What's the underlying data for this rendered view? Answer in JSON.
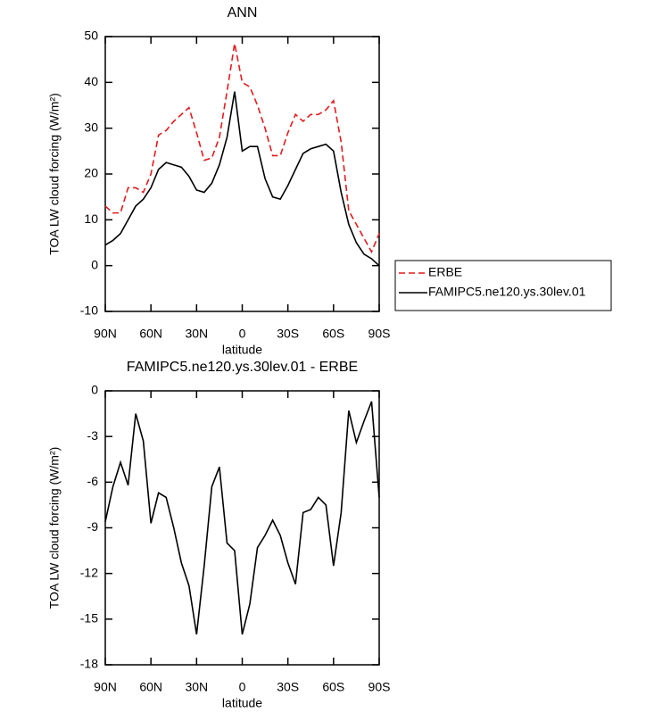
{
  "chart_data": [
    {
      "type": "line",
      "title": "ANN",
      "xlabel": "latitude",
      "ylabel": "TOA LW cloud forcing (W/m²)",
      "x": [
        90,
        85,
        80,
        75,
        70,
        65,
        60,
        55,
        50,
        45,
        40,
        35,
        30,
        25,
        20,
        15,
        10,
        5,
        0,
        -5,
        -10,
        -15,
        -20,
        -25,
        -30,
        -35,
        -40,
        -45,
        -50,
        -55,
        -60,
        -65,
        -70,
        -75,
        -80,
        -85,
        -90
      ],
      "xlim": [
        90,
        -90
      ],
      "xticks": [
        {
          "value": 90,
          "label": "90N"
        },
        {
          "value": 60,
          "label": "60N"
        },
        {
          "value": 30,
          "label": "30N"
        },
        0,
        {
          "value": -30,
          "label": "30S"
        },
        {
          "value": -60,
          "label": "60S"
        },
        {
          "value": -90,
          "label": "90S"
        }
      ],
      "ylim": [
        -10,
        50
      ],
      "yticks": [
        -10,
        0,
        10,
        20,
        30,
        40,
        50
      ],
      "legend": "outside-right",
      "series": [
        {
          "name": "ERBE",
          "color": "#e41a1c",
          "linestyle": "dashed",
          "values": [
            13,
            11.5,
            11.5,
            17,
            17,
            16,
            20,
            28.5,
            29.5,
            31.5,
            33,
            34.5,
            29,
            23,
            23.5,
            28,
            38,
            48.5,
            40,
            39,
            35,
            30,
            24,
            24,
            29,
            33,
            31.5,
            33,
            33,
            34,
            36,
            27,
            12,
            9,
            6,
            3,
            7
          ]
        },
        {
          "name": "FAMIPC5.ne120.ys.30lev.01",
          "color": "#000000",
          "linestyle": "solid",
          "values": [
            4.5,
            5.5,
            7,
            10,
            13,
            14.5,
            17,
            21,
            22.5,
            22,
            21.5,
            19.5,
            16.5,
            16,
            18,
            22,
            28,
            38,
            25,
            26,
            26,
            19,
            15,
            14.5,
            17.5,
            21,
            24.5,
            25.5,
            26,
            26.5,
            25,
            16,
            9,
            5,
            2.5,
            1.5,
            0
          ]
        }
      ]
    },
    {
      "type": "line",
      "title": "FAMIPC5.ne120.ys.30lev.01 - ERBE",
      "xlabel": "latitude",
      "ylabel": "TOA LW cloud forcing (W/m²)",
      "x": [
        90,
        85,
        80,
        75,
        70,
        65,
        60,
        55,
        50,
        45,
        40,
        35,
        30,
        25,
        20,
        15,
        10,
        5,
        0,
        -5,
        -10,
        -15,
        -20,
        -25,
        -30,
        -35,
        -40,
        -45,
        -50,
        -55,
        -60,
        -65,
        -70,
        -75,
        -80,
        -85,
        -90
      ],
      "xlim": [
        90,
        -90
      ],
      "xticks": [
        {
          "value": 90,
          "label": "90N"
        },
        {
          "value": 60,
          "label": "60N"
        },
        {
          "value": 30,
          "label": "30N"
        },
        0,
        {
          "value": -30,
          "label": "30S"
        },
        {
          "value": -60,
          "label": "60S"
        },
        {
          "value": -90,
          "label": "90S"
        }
      ],
      "ylim": [
        -18,
        0
      ],
      "yticks": [
        -18,
        -15,
        -12,
        -9,
        -6,
        -3,
        0
      ],
      "series": [
        {
          "color": "#000000",
          "linestyle": "solid",
          "values": [
            -8.6,
            -6.3,
            -4.7,
            -6.2,
            -1.5,
            -3.3,
            -8.7,
            -6.7,
            -7,
            -9,
            -11.3,
            -12.8,
            -16,
            -11.5,
            -6.3,
            -5,
            -10,
            -10.5,
            -16,
            -14,
            -10.3,
            -9.5,
            -8.5,
            -9.5,
            -11.3,
            -12.7,
            -8,
            -7.8,
            -7,
            -7.5,
            -11.5,
            -8,
            -1.3,
            -3.4,
            -2,
            -0.7,
            -7
          ]
        }
      ]
    }
  ]
}
